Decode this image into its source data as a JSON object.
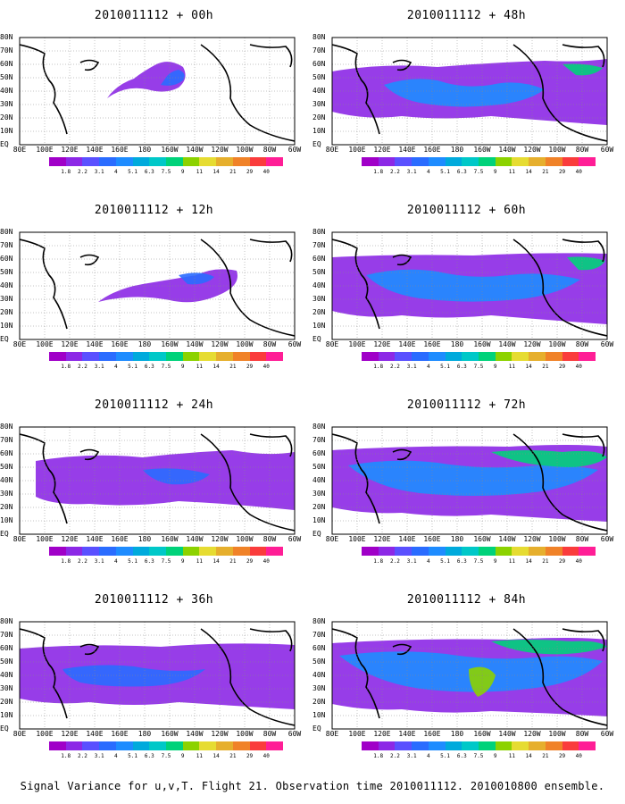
{
  "chart_data": {
    "type": "heatmap",
    "caption": "Signal Variance for u,v,T. Flight 21. Observation time 2010011112. 2010010800 ensemble.",
    "x_tick_labels": [
      "80E",
      "100E",
      "120E",
      "140E",
      "160E",
      "180",
      "160W",
      "140W",
      "120W",
      "100W",
      "80W",
      "60W"
    ],
    "y_tick_labels": [
      "80N",
      "70N",
      "60N",
      "50N",
      "40N",
      "30N",
      "20N",
      "10N",
      "EQ"
    ],
    "colorbar": {
      "labels": [
        "1.8",
        "2.2",
        "3.1",
        "4",
        "5.1",
        "6.3",
        "7.5",
        "9",
        "11",
        "14",
        "21",
        "29",
        "40"
      ],
      "colors": [
        "#a000c8",
        "#8c28e6",
        "#5a50ff",
        "#2a6cff",
        "#1e8cff",
        "#00aadc",
        "#00c8c8",
        "#00d27a",
        "#8cd200",
        "#e6dc32",
        "#e6af2d",
        "#f08228",
        "#fa3c3c",
        "#ff1e96"
      ]
    },
    "panels": [
      {
        "title": "2010011112 + 00h"
      },
      {
        "title": "2010011112 + 48h"
      },
      {
        "title": "2010011112 + 12h"
      },
      {
        "title": "2010011112 + 60h"
      },
      {
        "title": "2010011112 + 24h"
      },
      {
        "title": "2010011112 + 72h"
      },
      {
        "title": "2010011112 + 36h"
      },
      {
        "title": "2010011112 + 84h"
      }
    ]
  }
}
